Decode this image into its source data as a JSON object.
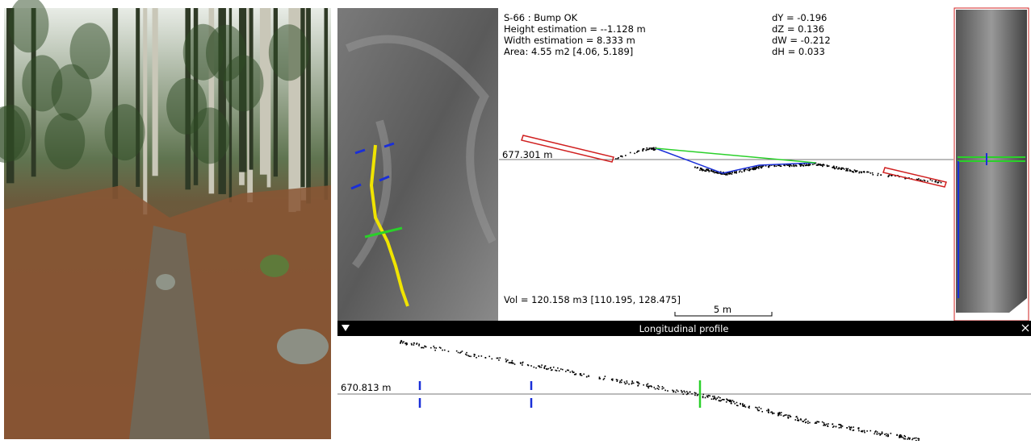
{
  "cross_section": {
    "title": "S-66 :  Bump OK",
    "height": "Height estimation = --1.128 m",
    "width": "Width estimation = 8.333 m",
    "area": "Area: 4.55 m2 [4.06, 5.189]",
    "dy": "dY = -0.196",
    "dz": "dZ = 0.136",
    "dw": "dW = -0.212",
    "dh": "dH = 0.033",
    "reference": "677.301 m",
    "volume": "Vol = 120.158 m3 [110.195, 128.475]",
    "scale": "5 m"
  },
  "longitudinal": {
    "title": "Longitudinal profile",
    "reference": "670.813 m"
  }
}
